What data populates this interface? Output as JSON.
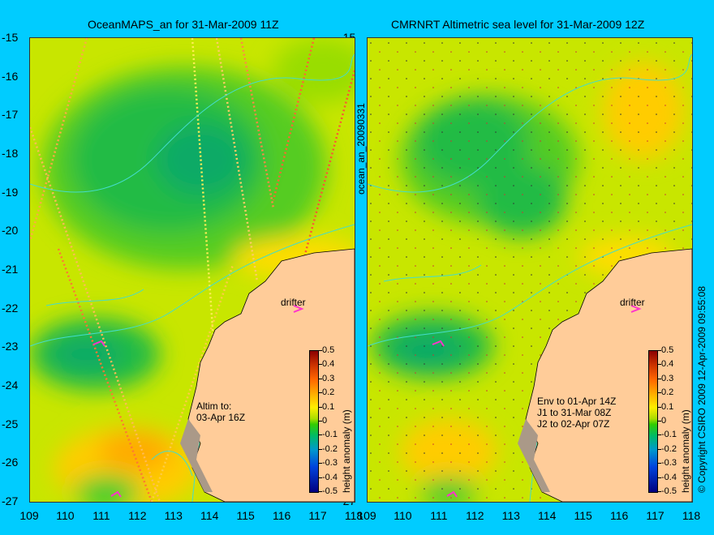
{
  "panels": [
    {
      "title": "OceanMAPS_an for 31-Mar-2009 11Z",
      "annotation_lines": [
        "Altim to:",
        "03-Apr 16Z"
      ],
      "side_label": "ocean_an_20090331",
      "drifter_label": "drifter"
    },
    {
      "title": "CMRNRT Altimetric sea level  for 31-Mar-2009 12Z",
      "annotation_lines": [
        "Env to 01-Apr 14Z",
        "J1 to 31-Mar 08Z",
        "J2 to 02-Apr 07Z"
      ],
      "side_label": "© Copyright CSIRO 2009   12-Apr-2009 09:55:08",
      "drifter_label": "drifter"
    }
  ],
  "y_ticks": [
    "-15",
    "-16",
    "-17",
    "-18",
    "-19",
    "-20",
    "-21",
    "-22",
    "-23",
    "-24",
    "-25",
    "-26",
    "-27"
  ],
  "x_ticks": [
    "109",
    "110",
    "111",
    "112",
    "113",
    "114",
    "115",
    "116",
    "117",
    "118"
  ],
  "colorbar": {
    "label": "height anomaly (m)",
    "ticks": [
      "0.5",
      "0.4",
      "0.3",
      "0.2",
      "0.1",
      "0",
      "-0.1",
      "-0.2",
      "-0.3",
      "-0.4",
      "-0.5"
    ],
    "range": [
      -0.5,
      0.5
    ]
  },
  "colors": {
    "background": "#00ccff",
    "land": "#ffcc99",
    "contour": "#44ddcc",
    "drifter": "#ff33cc"
  }
}
